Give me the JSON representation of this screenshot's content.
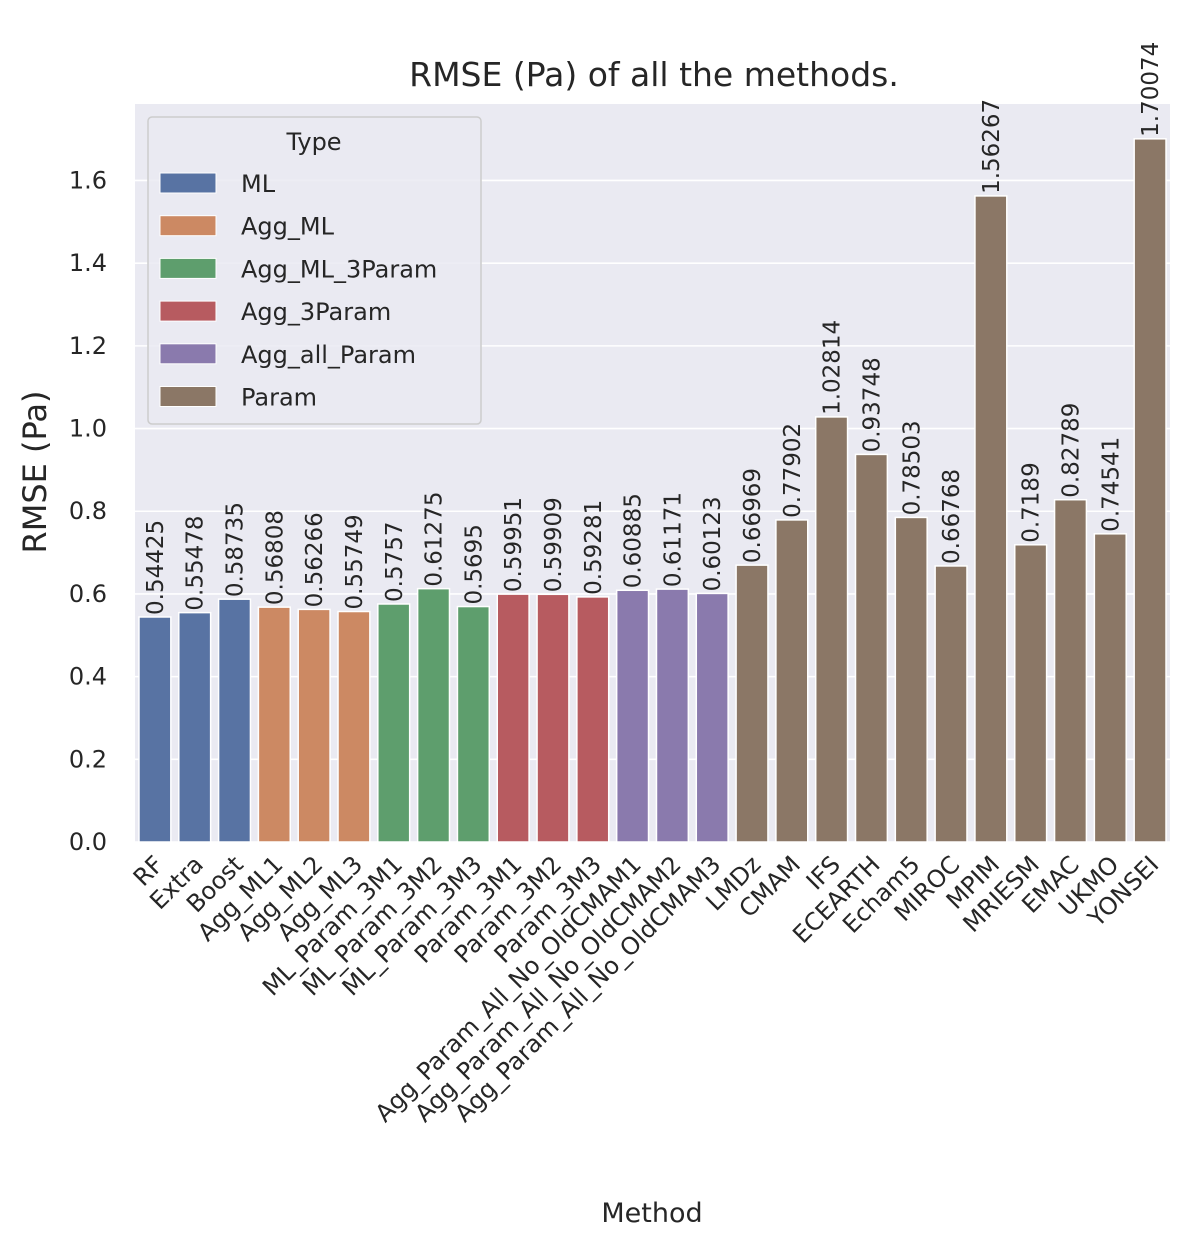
{
  "chart_data": {
    "type": "bar",
    "title": "RMSE (Pa) of all the methods.",
    "xlabel": "Method",
    "ylabel": "RMSE (Pa)",
    "ylim": [
      0,
      1.785
    ],
    "yticks": [
      "0.0",
      "0.2",
      "0.4",
      "0.6",
      "0.8",
      "1.0",
      "1.2",
      "1.4",
      "1.6"
    ],
    "grid": true,
    "legend": {
      "title": "Type",
      "placement": "top-left",
      "entries": [
        {
          "name": "ML",
          "color": "#5873a3"
        },
        {
          "name": "Agg_ML",
          "color": "#cc8963"
        },
        {
          "name": "Agg_ML_3Param",
          "color": "#5e9e6d"
        },
        {
          "name": "Agg_3Param",
          "color": "#b75b60"
        },
        {
          "name": "Agg_all_Param",
          "color": "#8a7aad"
        },
        {
          "name": "Param",
          "color": "#8b7766"
        }
      ]
    },
    "categories": [
      "RF",
      "Extra",
      "Boost",
      "Agg_ML1",
      "Agg_ML2",
      "Agg_ML3",
      "ML_Param_3M1",
      "ML_Param_3M2",
      "ML_Param_3M3",
      "Param_3M1",
      "Param_3M2",
      "Param_3M3",
      "Agg_Param_All_No_OldCMAM1",
      "Agg_Param_All_No_OldCMAM2",
      "Agg_Param_All_No_OldCMAM3",
      "LMDz",
      "CMAM",
      "IFS",
      "ECEARTH",
      "Echam5",
      "MIROC",
      "MPIM",
      "MRIESM",
      "EMAC",
      "UKMO",
      "YONSEI"
    ],
    "values": [
      0.54425,
      0.55478,
      0.58735,
      0.56808,
      0.56266,
      0.55749,
      0.5757,
      0.61275,
      0.5695,
      0.59951,
      0.59909,
      0.59281,
      0.60885,
      0.61171,
      0.60123,
      0.66969,
      0.77902,
      1.02814,
      0.93748,
      0.78503,
      0.66768,
      1.56267,
      0.7189,
      0.82789,
      0.74541,
      1.70074
    ],
    "value_labels": [
      "0.54425",
      "0.55478",
      "0.58735",
      "0.56808",
      "0.56266",
      "0.55749",
      "0.5757",
      "0.61275",
      "0.5695",
      "0.59951",
      "0.59909",
      "0.59281",
      "0.60885",
      "0.61171",
      "0.60123",
      "0.66969",
      "0.77902",
      "1.02814",
      "0.93748",
      "0.78503",
      "0.66768",
      "1.56267",
      "0.7189",
      "0.82789",
      "0.74541",
      "1.70074"
    ],
    "types": [
      "ML",
      "ML",
      "ML",
      "Agg_ML",
      "Agg_ML",
      "Agg_ML",
      "Agg_ML_3Param",
      "Agg_ML_3Param",
      "Agg_ML_3Param",
      "Agg_3Param",
      "Agg_3Param",
      "Agg_3Param",
      "Agg_all_Param",
      "Agg_all_Param",
      "Agg_all_Param",
      "Param",
      "Param",
      "Param",
      "Param",
      "Param",
      "Param",
      "Param",
      "Param",
      "Param",
      "Param",
      "Param"
    ],
    "background": "#eaeaf2"
  }
}
